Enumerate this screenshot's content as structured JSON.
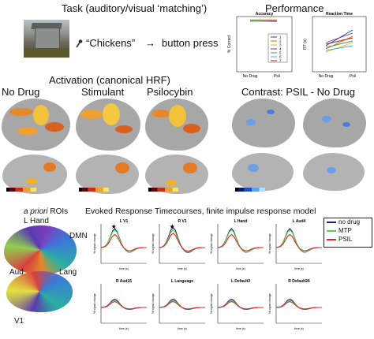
{
  "task": {
    "title": "Task (auditory/visual ‘matching’)",
    "phrase": "“Chickens”",
    "arrow": "→",
    "action": "button press"
  },
  "performance": {
    "title": "Performance",
    "accuracy": {
      "title": "Accuracy",
      "ylabel": "% Correct",
      "xticks": [
        "No Drug",
        "Psil"
      ],
      "legend": [
        "1",
        "2",
        "3",
        "4",
        "5",
        "6",
        "7"
      ]
    },
    "rt": {
      "title": "Reaction Time",
      "ylabel": "RT (s)",
      "xticks": [
        "No Drug",
        "Psil"
      ]
    }
  },
  "activation": {
    "title": "Activation (canonical HRF)",
    "labels": [
      "No Drug",
      "Stimulant",
      "Psilocybin"
    ]
  },
  "contrast": {
    "title": "Contrast: PSIL - No Drug"
  },
  "rois": {
    "title_italic": "a priori",
    "title_rest": " ROIs",
    "labels": [
      "L Hand",
      "DMN",
      "Aud",
      "Lang",
      "V1"
    ]
  },
  "timecourses": {
    "title": "Evoked Response Timecourses, finite impulse response model",
    "legend": [
      {
        "name": "no drug",
        "color": "#1a1a8c"
      },
      {
        "name": "MTP",
        "color": "#5ad04a"
      },
      {
        "name": "PSIL",
        "color": "#e8242a"
      }
    ],
    "ylabel": "% signal change",
    "xlabel": "time (s)",
    "star": "★",
    "panels": [
      {
        "title": "L V1",
        "star": true
      },
      {
        "title": "R V1",
        "star": true
      },
      {
        "title": "L Hand",
        "star": false
      },
      {
        "title": "L Aud4",
        "star": false
      },
      {
        "title": "R Aud15",
        "star": false
      },
      {
        "title": "L Language",
        "star": false
      },
      {
        "title": "L Default3",
        "star": false
      },
      {
        "title": "R Default26",
        "star": false
      }
    ]
  }
}
